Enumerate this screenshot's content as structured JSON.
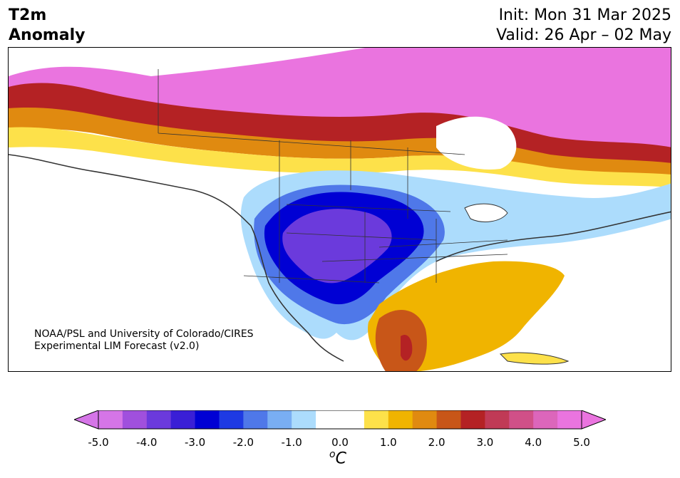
{
  "header": {
    "title_line1": "T2m",
    "title_line2": "Anomaly",
    "init": "Init: Mon 31 Mar 2025",
    "valid": "Valid: 26 Apr – 02 May"
  },
  "credit": {
    "line1": "NOAA/PSL and University of Colorado/CIRES",
    "line2": "Experimental LIM Forecast (v2.0)"
  },
  "colorbar": {
    "units_sup": "o",
    "units_main": "C",
    "ticks": [
      "-5.0",
      "-4.0",
      "-3.0",
      "-2.0",
      "-1.0",
      "0.0",
      "1.0",
      "2.0",
      "3.0",
      "4.0",
      "5.0"
    ],
    "colors": [
      "#d575e7",
      "#a050dd",
      "#6b3adc",
      "#3a1fd6",
      "#0000d4",
      "#1e3ae3",
      "#4f78e9",
      "#79aef3",
      "#acdcfc",
      "#ffffff",
      "#ffffff",
      "#fde14a",
      "#f0b400",
      "#e08a10",
      "#c85618",
      "#b42224",
      "#c03a56",
      "#d05088",
      "#dc66bb",
      "#ea74df"
    ],
    "under_color": "#d575e7",
    "over_color": "#ea74df"
  },
  "map": {
    "region": "North America",
    "variable": "2 m temperature anomaly",
    "features": [
      "coastlines",
      "country borders",
      "US state borders",
      "Canadian province borders"
    ]
  }
}
